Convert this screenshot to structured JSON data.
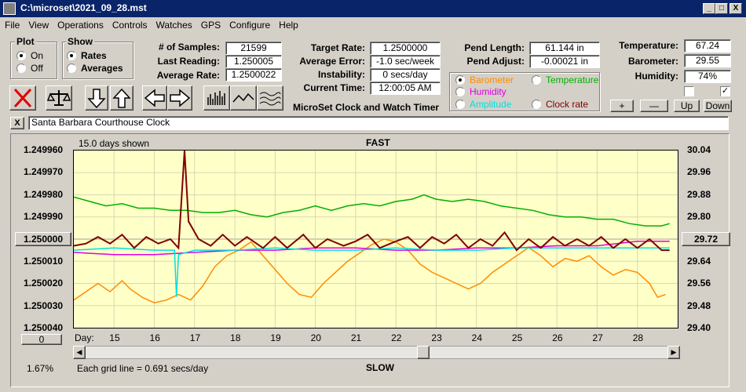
{
  "window": {
    "title": "C:\\microset\\2021_09_28.mst",
    "minimize": "_",
    "maximize": "□",
    "close": "X"
  },
  "menu": [
    "File",
    "View",
    "Operations",
    "Controls",
    "Watches",
    "GPS",
    "Configure",
    "Help"
  ],
  "plot_group": {
    "title": "Plot",
    "on": "On",
    "off": "Off",
    "selected": "On"
  },
  "show_group": {
    "title": "Show",
    "rates": "Rates",
    "averages": "Averages",
    "selected": "Rates"
  },
  "stats": {
    "samples_label": "# of Samples:",
    "samples": "21599",
    "last_label": "Last Reading:",
    "last": "1.250005",
    "avg_label": "Average Rate:",
    "avg": "1.2500022"
  },
  "rates": {
    "target_label": "Target Rate:",
    "target": "1.2500000",
    "error_label": "Average Error:",
    "error": "-1.0 sec/week",
    "instab_label": "Instability:",
    "instab": "0 secs/day",
    "time_label": "Current Time:",
    "time": "12:00:05 AM"
  },
  "app_label": "MicroSet Clock and Watch Timer",
  "pend": {
    "length_label": "Pend Length:",
    "length": "61.144 in",
    "adjust_label": "Pend Adjust:",
    "adjust": "-0.00021 in"
  },
  "sensors": {
    "temp_label": "Temperature:",
    "temp": "67.24",
    "baro_label": "Barometer:",
    "baro": "29.55",
    "hum_label": "Humidity:",
    "hum": "74%"
  },
  "series_select": {
    "barometer": "Barometer",
    "temperature": "Temperature",
    "humidity": "Humidity",
    "amplitude": "Amplitude",
    "clock_rate": "Clock rate",
    "selected": "Barometer"
  },
  "adjust_buttons": {
    "plus": "+",
    "minus": "—",
    "up": "Up",
    "down": "Down"
  },
  "watch_name": "Santa Barbara Courthouse Clock",
  "watch_close": "X",
  "colors": {
    "rate": "#800000",
    "barometer": "#ff8c00",
    "temperature": "#00b000",
    "humidity": "#e000e0",
    "amplitude": "#00e0e0",
    "plot_bg": "#ffffc8"
  },
  "chart_data": {
    "type": "line",
    "top_label": "FAST",
    "bottom_label": "SLOW",
    "days_shown": "15.0 days shown",
    "grid_note": "Each grid line = 0.691 secs/day",
    "xlabel": "Day:",
    "x_ticks": [
      15,
      16,
      17,
      18,
      19,
      20,
      21,
      22,
      23,
      24,
      25,
      26,
      27,
      28
    ],
    "xlim": [
      14.0,
      29.0
    ],
    "left_axis": {
      "ticks": [
        "1.249960",
        "1.249970",
        "1.249980",
        "1.249990",
        "1.250000",
        "1.250010",
        "1.250020",
        "1.250030",
        "1.250040"
      ],
      "ylim": [
        1.24996,
        1.25004
      ],
      "inverted": true
    },
    "right_axis": {
      "ticks": [
        "30.04",
        "29.96",
        "29.88",
        "29.80",
        "29.72",
        "29.64",
        "29.56",
        "29.48",
        "29.40"
      ],
      "ylim": [
        29.4,
        30.04
      ]
    },
    "left_button": "1.250000",
    "right_button": "29.72",
    "zero_button": "0",
    "percent": "1.67%",
    "series": [
      {
        "name": "Clock rate",
        "axis": "left",
        "color": "#800000",
        "points": [
          [
            14.0,
            1.250003
          ],
          [
            14.3,
            1.250002
          ],
          [
            14.6,
            1.249999
          ],
          [
            14.9,
            1.250002
          ],
          [
            15.2,
            1.249998
          ],
          [
            15.5,
            1.250004
          ],
          [
            15.8,
            1.249999
          ],
          [
            16.1,
            1.250002
          ],
          [
            16.4,
            1.25
          ],
          [
            16.6,
            1.250004
          ],
          [
            16.75,
            1.24996
          ],
          [
            16.85,
            1.249992
          ],
          [
            17.1,
            1.25
          ],
          [
            17.4,
            1.250003
          ],
          [
            17.7,
            1.249998
          ],
          [
            18.0,
            1.250003
          ],
          [
            18.3,
            1.249999
          ],
          [
            18.7,
            1.250004
          ],
          [
            19.0,
            1.249999
          ],
          [
            19.3,
            1.250004
          ],
          [
            19.7,
            1.249998
          ],
          [
            20.0,
            1.250004
          ],
          [
            20.3,
            1.25
          ],
          [
            20.7,
            1.250003
          ],
          [
            21.0,
            1.250001
          ],
          [
            21.3,
            1.249998
          ],
          [
            21.6,
            1.250004
          ],
          [
            22.0,
            1.250001
          ],
          [
            22.3,
            1.249999
          ],
          [
            22.6,
            1.250004
          ],
          [
            22.9,
            1.249999
          ],
          [
            23.2,
            1.250002
          ],
          [
            23.5,
            1.249998
          ],
          [
            23.8,
            1.250004
          ],
          [
            24.1,
            1.25
          ],
          [
            24.4,
            1.250003
          ],
          [
            24.7,
            1.249997
          ],
          [
            25.0,
            1.250005
          ],
          [
            25.3,
            1.25
          ],
          [
            25.6,
            1.250004
          ],
          [
            25.9,
            1.249999
          ],
          [
            26.2,
            1.250003
          ],
          [
            26.5,
            1.25
          ],
          [
            26.8,
            1.250003
          ],
          [
            27.1,
            1.249999
          ],
          [
            27.4,
            1.250004
          ],
          [
            27.7,
            1.25
          ],
          [
            28.0,
            1.250004
          ],
          [
            28.3,
            1.25
          ],
          [
            28.6,
            1.250005
          ],
          [
            28.8,
            1.250005
          ]
        ]
      },
      {
        "name": "Barometer",
        "axis": "right",
        "color": "#ff8c00",
        "points": [
          [
            14.0,
            29.5
          ],
          [
            14.3,
            29.53
          ],
          [
            14.6,
            29.56
          ],
          [
            14.9,
            29.53
          ],
          [
            15.2,
            29.57
          ],
          [
            15.4,
            29.54
          ],
          [
            15.7,
            29.51
          ],
          [
            16.0,
            29.49
          ],
          [
            16.3,
            29.5
          ],
          [
            16.6,
            29.52
          ],
          [
            16.9,
            29.5
          ],
          [
            17.2,
            29.55
          ],
          [
            17.5,
            29.62
          ],
          [
            17.8,
            29.66
          ],
          [
            18.1,
            29.68
          ],
          [
            18.4,
            29.71
          ],
          [
            18.7,
            29.66
          ],
          [
            19.0,
            29.61
          ],
          [
            19.3,
            29.56
          ],
          [
            19.6,
            29.52
          ],
          [
            19.9,
            29.51
          ],
          [
            20.2,
            29.56
          ],
          [
            20.5,
            29.6
          ],
          [
            20.8,
            29.64
          ],
          [
            21.1,
            29.67
          ],
          [
            21.4,
            29.7
          ],
          [
            21.7,
            29.72
          ],
          [
            22.0,
            29.71
          ],
          [
            22.3,
            29.68
          ],
          [
            22.6,
            29.63
          ],
          [
            22.9,
            29.6
          ],
          [
            23.2,
            29.58
          ],
          [
            23.5,
            29.56
          ],
          [
            23.8,
            29.54
          ],
          [
            24.1,
            29.56
          ],
          [
            24.4,
            29.6
          ],
          [
            24.7,
            29.63
          ],
          [
            25.0,
            29.66
          ],
          [
            25.3,
            29.69
          ],
          [
            25.6,
            29.66
          ],
          [
            25.9,
            29.62
          ],
          [
            26.2,
            29.65
          ],
          [
            26.5,
            29.64
          ],
          [
            26.8,
            29.66
          ],
          [
            27.1,
            29.62
          ],
          [
            27.4,
            29.59
          ],
          [
            27.7,
            29.61
          ],
          [
            28.0,
            29.6
          ],
          [
            28.3,
            29.56
          ],
          [
            28.5,
            29.51
          ],
          [
            28.7,
            29.52
          ]
        ]
      },
      {
        "name": "Temperature",
        "axis": "left",
        "color": "#00b000",
        "points": [
          [
            14.0,
            1.249981
          ],
          [
            14.4,
            1.249983
          ],
          [
            14.8,
            1.249985
          ],
          [
            15.2,
            1.249984
          ],
          [
            15.6,
            1.249986
          ],
          [
            16.0,
            1.249986
          ],
          [
            16.4,
            1.249987
          ],
          [
            16.8,
            1.249987
          ],
          [
            17.2,
            1.249988
          ],
          [
            17.6,
            1.249988
          ],
          [
            18.0,
            1.249987
          ],
          [
            18.4,
            1.249989
          ],
          [
            18.8,
            1.24999
          ],
          [
            19.2,
            1.249988
          ],
          [
            19.6,
            1.249987
          ],
          [
            20.0,
            1.249985
          ],
          [
            20.4,
            1.249987
          ],
          [
            20.8,
            1.249985
          ],
          [
            21.2,
            1.249984
          ],
          [
            21.6,
            1.249985
          ],
          [
            22.0,
            1.249983
          ],
          [
            22.4,
            1.249982
          ],
          [
            22.7,
            1.24998
          ],
          [
            23.0,
            1.249982
          ],
          [
            23.4,
            1.249983
          ],
          [
            23.8,
            1.249982
          ],
          [
            24.2,
            1.249983
          ],
          [
            24.6,
            1.249985
          ],
          [
            25.0,
            1.249986
          ],
          [
            25.4,
            1.249987
          ],
          [
            25.8,
            1.249989
          ],
          [
            26.2,
            1.24999
          ],
          [
            26.6,
            1.24999
          ],
          [
            27.0,
            1.249991
          ],
          [
            27.4,
            1.249991
          ],
          [
            27.8,
            1.249993
          ],
          [
            28.2,
            1.249994
          ],
          [
            28.6,
            1.249994
          ],
          [
            28.8,
            1.249993
          ]
        ]
      },
      {
        "name": "Humidity",
        "axis": "left",
        "color": "#e000e0",
        "points": [
          [
            14.0,
            1.250006
          ],
          [
            15.0,
            1.250007
          ],
          [
            16.0,
            1.250007
          ],
          [
            17.0,
            1.250006
          ],
          [
            18.0,
            1.250005
          ],
          [
            19.0,
            1.250005
          ],
          [
            20.0,
            1.250004
          ],
          [
            21.0,
            1.250004
          ],
          [
            22.0,
            1.250005
          ],
          [
            23.0,
            1.250005
          ],
          [
            24.0,
            1.250004
          ],
          [
            25.0,
            1.250004
          ],
          [
            26.0,
            1.250003
          ],
          [
            27.0,
            1.250003
          ],
          [
            28.0,
            1.250001
          ],
          [
            28.8,
            1.250001
          ]
        ]
      },
      {
        "name": "Amplitude",
        "axis": "left",
        "color": "#00e0e0",
        "points": [
          [
            14.0,
            1.250005
          ],
          [
            15.0,
            1.250004
          ],
          [
            16.0,
            1.250005
          ],
          [
            16.5,
            1.250005
          ],
          [
            16.55,
            1.250026
          ],
          [
            16.6,
            1.250007
          ],
          [
            17.0,
            1.250005
          ],
          [
            18.0,
            1.250005
          ],
          [
            19.0,
            1.250004
          ],
          [
            20.0,
            1.250005
          ],
          [
            21.0,
            1.250005
          ],
          [
            22.0,
            1.250004
          ],
          [
            23.0,
            1.250005
          ],
          [
            24.0,
            1.250005
          ],
          [
            25.0,
            1.250004
          ],
          [
            26.0,
            1.250004
          ],
          [
            27.0,
            1.250004
          ],
          [
            28.0,
            1.250004
          ],
          [
            28.8,
            1.250004
          ]
        ]
      }
    ]
  }
}
